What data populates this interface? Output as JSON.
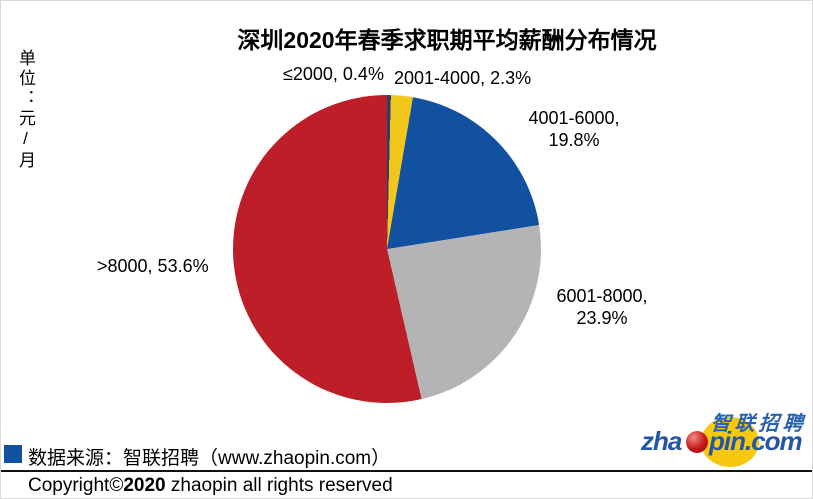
{
  "unit_label": "单位：元/月",
  "chart_data": {
    "type": "pie",
    "title": "深圳2020年春季求职期平均薪酬分布情况",
    "unit": "元/月",
    "direction": "clockwise",
    "start_angle_deg": 0,
    "legend_position": "bottom-left",
    "slices": [
      {
        "label": "≤2000",
        "value_pct": 0.4,
        "display": "≤2000, 0.4%",
        "color": "#2A3F6F"
      },
      {
        "label": "2001-4000",
        "value_pct": 2.3,
        "display": "2001-4000, 2.3%",
        "color": "#F2C71B"
      },
      {
        "label": "4001-6000",
        "value_pct": 19.8,
        "display": "4001-6000, 19.8%",
        "color": "#1151A0"
      },
      {
        "label": "6001-8000",
        "value_pct": 23.9,
        "display": "6001-8000, 23.9%",
        "color": "#B4B4B6"
      },
      {
        "label": ">8000",
        "value_pct": 53.6,
        "display": ">8000, 53.6%",
        "color": "#BD1E27"
      }
    ]
  },
  "footer": {
    "marker_color": "#1151A0",
    "source_text": "数据来源：智联招聘（www.zhaopin.com）",
    "copyright": {
      "prefix": "Copyright©",
      "year": "2020",
      "suffix": " zhaopin all rights reserved"
    }
  },
  "logo": {
    "brand_cn": "智联招聘",
    "brand_en_left": "zha",
    "brand_en_right": "pin.com",
    "circle_color": "#F7C80D",
    "dot_color": "#C4161C",
    "text_color": "#2456A8",
    "cn_text_color": "#2B62B0"
  }
}
